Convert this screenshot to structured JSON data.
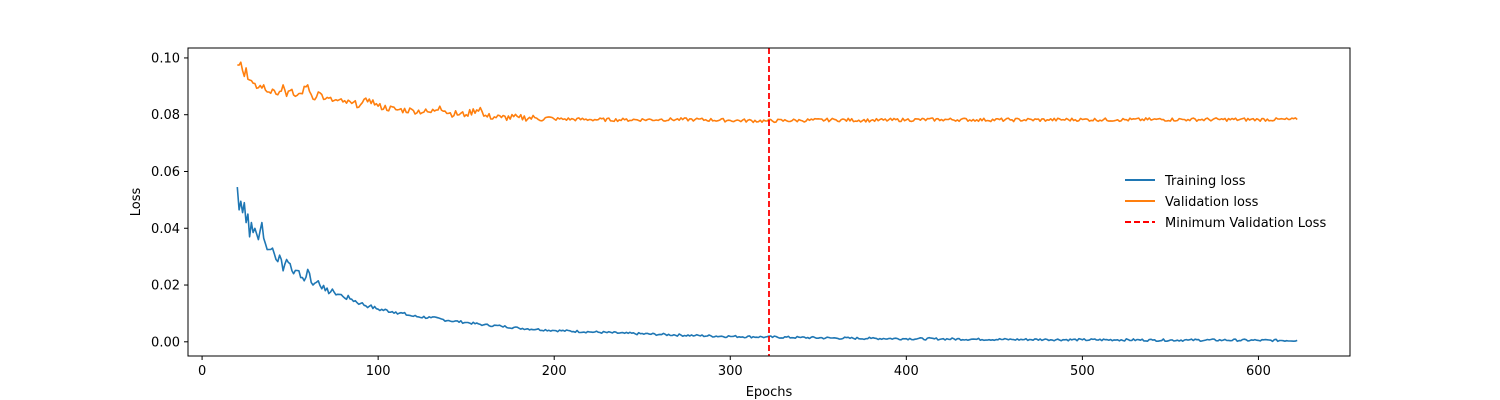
{
  "chart_data": {
    "type": "line",
    "title": "",
    "xlabel": "Epochs",
    "ylabel": "Loss",
    "xlim": [
      -8,
      652
    ],
    "ylim": [
      -0.005,
      0.1035
    ],
    "xticks": [
      0,
      100,
      200,
      300,
      400,
      500,
      600
    ],
    "xtick_labels": [
      "0",
      "100",
      "200",
      "300",
      "400",
      "500",
      "600"
    ],
    "yticks": [
      0.0,
      0.02,
      0.04,
      0.06,
      0.08,
      0.1
    ],
    "ytick_labels": [
      "0.00",
      "0.02",
      "0.04",
      "0.06",
      "0.08",
      "0.10"
    ],
    "grid": false,
    "legend_position": "right",
    "series": [
      {
        "name": "Training loss",
        "color": "#1f77b4",
        "x": [
          20,
          21,
          22,
          23,
          24,
          25,
          26,
          27,
          28,
          29,
          30,
          32,
          34,
          36,
          38,
          40,
          42,
          44,
          46,
          48,
          50,
          52,
          55,
          58,
          60,
          63,
          66,
          70,
          75,
          80,
          85,
          90,
          95,
          100,
          110,
          120,
          130,
          140,
          150,
          160,
          170,
          180,
          190,
          200,
          220,
          240,
          260,
          280,
          300,
          320,
          340,
          360,
          380,
          400,
          420,
          440,
          460,
          480,
          500,
          520,
          540,
          560,
          580,
          600,
          622
        ],
        "y": [
          0.0545,
          0.0465,
          0.0495,
          0.0455,
          0.049,
          0.042,
          0.045,
          0.037,
          0.042,
          0.0385,
          0.04,
          0.036,
          0.042,
          0.0345,
          0.0325,
          0.033,
          0.029,
          0.0305,
          0.025,
          0.029,
          0.0275,
          0.024,
          0.025,
          0.0215,
          0.0255,
          0.02,
          0.0215,
          0.018,
          0.0175,
          0.016,
          0.015,
          0.0135,
          0.0125,
          0.0115,
          0.0105,
          0.009,
          0.0085,
          0.0075,
          0.0068,
          0.006,
          0.0055,
          0.0048,
          0.0044,
          0.004,
          0.0035,
          0.003,
          0.0026,
          0.0022,
          0.0019,
          0.0017,
          0.0015,
          0.0013,
          0.0012,
          0.0011,
          0.001,
          0.0009,
          0.0008,
          0.0008,
          0.0007,
          0.0007,
          0.0006,
          0.0006,
          0.0006,
          0.0005,
          0.0005
        ]
      },
      {
        "name": "Validation loss",
        "color": "#ff7f0e",
        "x": [
          20,
          22,
          23,
          24,
          25,
          26,
          28,
          30,
          32,
          35,
          38,
          40,
          43,
          46,
          48,
          50,
          53,
          56,
          60,
          63,
          66,
          70,
          75,
          80,
          85,
          90,
          95,
          100,
          110,
          120,
          130,
          135,
          140,
          150,
          158,
          160,
          170,
          180,
          190,
          200,
          220,
          240,
          260,
          280,
          300,
          320,
          340,
          360,
          380,
          400,
          420,
          440,
          460,
          480,
          500,
          520,
          540,
          560,
          580,
          600,
          622
        ],
        "y": [
          0.0975,
          0.0985,
          0.0955,
          0.0935,
          0.0965,
          0.0925,
          0.092,
          0.091,
          0.0895,
          0.0905,
          0.088,
          0.089,
          0.087,
          0.0905,
          0.0865,
          0.0885,
          0.0865,
          0.0875,
          0.0905,
          0.0855,
          0.088,
          0.0855,
          0.085,
          0.0845,
          0.084,
          0.0835,
          0.0855,
          0.083,
          0.0818,
          0.0815,
          0.0808,
          0.083,
          0.0805,
          0.08,
          0.0825,
          0.0795,
          0.079,
          0.079,
          0.0788,
          0.0785,
          0.0783,
          0.0782,
          0.0783,
          0.0783,
          0.078,
          0.0778,
          0.078,
          0.0782,
          0.078,
          0.0782,
          0.0783,
          0.0782,
          0.0782,
          0.0782,
          0.0783,
          0.0782,
          0.0783,
          0.0783,
          0.0783,
          0.0783,
          0.0783
        ]
      }
    ],
    "vlines": [
      {
        "name": "Minimum Validation Loss",
        "x": 322,
        "color": "#ff0000",
        "style": "dashed"
      }
    ]
  }
}
